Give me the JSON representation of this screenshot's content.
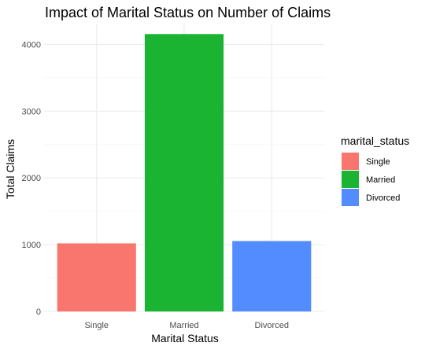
{
  "chart_data": {
    "type": "bar",
    "title": "Impact of Marital Status on Number of Claims",
    "xlabel": "Marital Status",
    "ylabel": "Total Claims",
    "categories": [
      "Single",
      "Married",
      "Divorced"
    ],
    "values": [
      1020,
      4155,
      1055
    ],
    "colors": [
      "#F8766D",
      "#1BB332",
      "#528CFF"
    ],
    "ylim": [
      0,
      4300
    ],
    "yticks": [
      0,
      1000,
      2000,
      3000,
      4000
    ],
    "grid": true,
    "legend": {
      "title": "marital_status",
      "position": "right",
      "entries": [
        "Single",
        "Married",
        "Divorced"
      ]
    }
  }
}
